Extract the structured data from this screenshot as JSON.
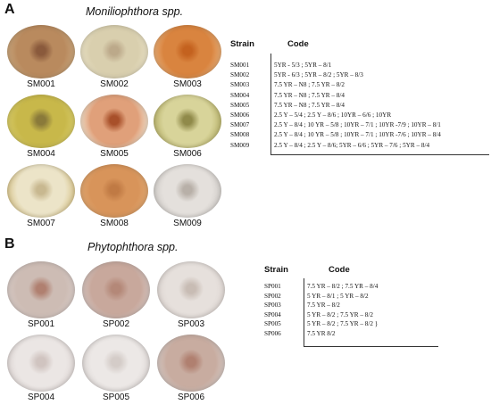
{
  "panel_a": {
    "letter": "A",
    "title": "Moniliophthora spp.",
    "plates": [
      {
        "label": "SM001",
        "edge": "#c9a77e",
        "mid": "#b98a5e",
        "center": "#8a5a3c"
      },
      {
        "label": "SM002",
        "edge": "#e8e0c4",
        "mid": "#d9cfae",
        "center": "#bca98a"
      },
      {
        "label": "SM003",
        "edge": "#e8b07a",
        "mid": "#d9843f",
        "center": "#c4621f"
      },
      {
        "label": "SM004",
        "edge": "#d8cc6a",
        "mid": "#c8b84a",
        "center": "#8a7a3a"
      },
      {
        "label": "SM005",
        "edge": "#f2e4d0",
        "mid": "#e0a07a",
        "center": "#a8502a"
      },
      {
        "label": "SM006",
        "edge": "#b8b26a",
        "mid": "#d8d49a",
        "center": "#908a4a"
      },
      {
        "label": "SM007",
        "edge": "#d8c48a",
        "mid": "#ece4c8",
        "center": "#c8b890"
      },
      {
        "label": "SM008",
        "edge": "#e0a872",
        "mid": "#d8945a",
        "center": "#c07a44"
      },
      {
        "label": "SM009",
        "edge": "#d0ccc8",
        "mid": "#e4e0dc",
        "center": "#b8b0a8"
      }
    ],
    "table": {
      "header_strain": "Strain",
      "header_code": "Code",
      "rows": [
        {
          "strain": "SM001",
          "code": "5YR - 5/3 ; 5YR – 8/1"
        },
        {
          "strain": "SM002",
          "code": "5YR - 6/3 ; 5YR – 8/2 ; 5YR – 8/3"
        },
        {
          "strain": "SM003",
          "code": "7.5 YR – N8 ; 7.5 YR – 8/2"
        },
        {
          "strain": "SM004",
          "code": "7.5 YR – N8 ; 7.5 YR – 8/4"
        },
        {
          "strain": "SM005",
          "code": "7.5 YR – N8 ; 7.5 YR – 8/4"
        },
        {
          "strain": "SM006",
          "code": "2.5 Y – 5/4 ; 2.5 Y – 8/6 ; 10YR – 6/6 ; 10YR"
        },
        {
          "strain": "SM007",
          "code": "2.5 Y – 8/4 ; 10 YR – 5/8 ; 10YR – 7/1 ; 10YR -7/9 ; 10YR – 8/1"
        },
        {
          "strain": "SM008",
          "code": "2.5 Y – 8/4 ; 10 YR – 5/8 ; 10YR – 7/1 ; 10YR -7/6 ; 10YR – 8/4"
        },
        {
          "strain": "SM009",
          "code": "2.5 Y – 8/4 ; 2.5 Y – 8/6; 5YR – 6/6 ; 5YR – 7/6 ; 5YR – 8/4"
        }
      ]
    }
  },
  "panel_b": {
    "letter": "B",
    "title": "Phytophthora spp.",
    "plates": [
      {
        "label": "SP001",
        "edge": "#d8ccc8",
        "mid": "#cdbcb4",
        "center": "#b08070"
      },
      {
        "label": "SP002",
        "edge": "#d6c8c4",
        "mid": "#c8a89c",
        "center": "#b48878"
      },
      {
        "label": "SP003",
        "edge": "#dcd4d0",
        "mid": "#e6e0dc",
        "center": "#c8bcb4"
      },
      {
        "label": "SP004",
        "edge": "#dcd4d2",
        "mid": "#ebe6e4",
        "center": "#d0c4c0"
      },
      {
        "label": "SP005",
        "edge": "#dcd6d4",
        "mid": "#ece8e6",
        "center": "#d4ccc8"
      },
      {
        "label": "SP006",
        "edge": "#d6ccc8",
        "mid": "#c8aca0",
        "center": "#b08070"
      }
    ],
    "table": {
      "header_strain": "Strain",
      "header_code": "Code",
      "rows": [
        {
          "strain": "SP001",
          "code": "7.5 YR – 8/2 ; 7.5 YR – 8/4"
        },
        {
          "strain": "SP002",
          "code": "5 YR – 8/1 ; 5 YR – 8/2"
        },
        {
          "strain": "SP003",
          "code": "7.5 YR – 8/2"
        },
        {
          "strain": "SP004",
          "code": "5 YR – 8/2 ; 7.5 YR – 8/2"
        },
        {
          "strain": "SP005",
          "code": "5 YR – 8/2 ; 7.5 YR – 8/2 }"
        },
        {
          "strain": "SP006",
          "code": "7.5 YR 8/2"
        }
      ]
    }
  }
}
